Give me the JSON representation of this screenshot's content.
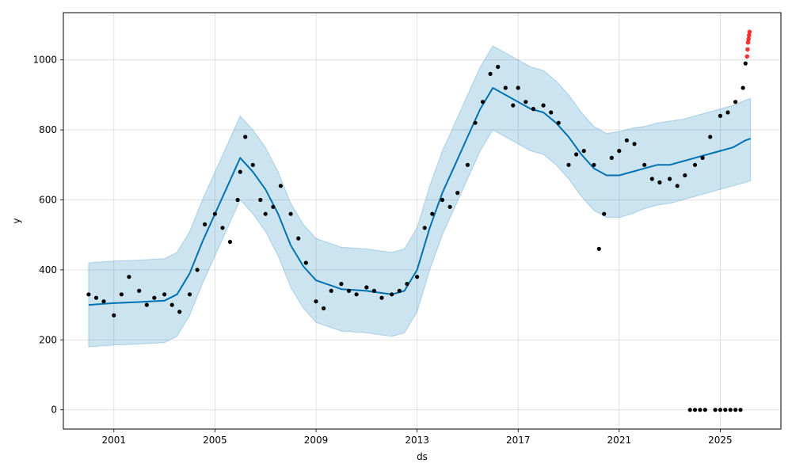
{
  "chart_data": {
    "type": "line",
    "xlabel": "ds",
    "ylabel": "y",
    "xlim": [
      1999.0,
      2027.4
    ],
    "ylim": [
      -55,
      1135
    ],
    "x_ticks": [
      2001,
      2005,
      2009,
      2013,
      2017,
      2021,
      2025
    ],
    "x_tick_labels": [
      "2001",
      "2005",
      "2009",
      "2013",
      "2017",
      "2021",
      "2025"
    ],
    "y_ticks": [
      0,
      200,
      400,
      600,
      800,
      1000
    ],
    "y_tick_labels": [
      "0",
      "200",
      "400",
      "600",
      "800",
      "1000"
    ],
    "grid": true,
    "forecast": {
      "x": [
        2000.0,
        2001.0,
        2002.0,
        2003.0,
        2003.5,
        2004.0,
        2004.5,
        2005.0,
        2005.5,
        2006.0,
        2006.5,
        2007.0,
        2007.5,
        2008.0,
        2008.5,
        2009.0,
        2010.0,
        2011.0,
        2011.5,
        2012.0,
        2012.5,
        2013.0,
        2013.5,
        2014.0,
        2014.5,
        2015.0,
        2015.5,
        2016.0,
        2016.5,
        2017.0,
        2017.5,
        2018.0,
        2018.5,
        2019.0,
        2019.5,
        2020.0,
        2020.5,
        2021.0,
        2021.5,
        2022.0,
        2022.5,
        2023.0,
        2023.5,
        2024.0,
        2024.5,
        2025.0,
        2025.5,
        2026.0,
        2026.2
      ],
      "y": [
        300,
        305,
        308,
        312,
        330,
        390,
        480,
        560,
        640,
        720,
        680,
        630,
        560,
        470,
        410,
        370,
        345,
        340,
        335,
        330,
        340,
        400,
        520,
        620,
        700,
        780,
        860,
        920,
        900,
        880,
        860,
        850,
        820,
        780,
        730,
        690,
        670,
        670,
        680,
        690,
        700,
        700,
        710,
        720,
        730,
        740,
        750,
        770,
        775
      ],
      "lower": [
        180,
        185,
        188,
        192,
        210,
        270,
        360,
        440,
        520,
        600,
        560,
        510,
        440,
        350,
        290,
        250,
        225,
        220,
        215,
        210,
        220,
        280,
        400,
        500,
        580,
        660,
        740,
        800,
        780,
        760,
        740,
        730,
        700,
        660,
        610,
        570,
        550,
        550,
        560,
        575,
        585,
        590,
        600,
        610,
        620,
        630,
        640,
        650,
        655
      ],
      "upper": [
        420,
        425,
        428,
        432,
        450,
        510,
        600,
        680,
        760,
        840,
        800,
        750,
        680,
        590,
        530,
        490,
        465,
        460,
        455,
        450,
        460,
        520,
        640,
        740,
        820,
        900,
        980,
        1040,
        1020,
        1000,
        980,
        970,
        940,
        900,
        850,
        810,
        790,
        795,
        805,
        810,
        820,
        825,
        830,
        840,
        850,
        860,
        870,
        885,
        890
      ]
    },
    "observed": {
      "x": [
        2000.0,
        2000.3,
        2000.6,
        2001.0,
        2001.3,
        2001.6,
        2002.0,
        2002.3,
        2002.6,
        2003.0,
        2003.3,
        2003.6,
        2004.0,
        2004.3,
        2004.6,
        2005.0,
        2005.3,
        2005.6,
        2005.9,
        2006.0,
        2006.2,
        2006.5,
        2006.8,
        2007.0,
        2007.3,
        2007.6,
        2008.0,
        2008.3,
        2008.6,
        2009.0,
        2009.3,
        2009.6,
        2010.0,
        2010.3,
        2010.6,
        2011.0,
        2011.3,
        2011.6,
        2012.0,
        2012.3,
        2012.6,
        2013.0,
        2013.3,
        2013.6,
        2014.0,
        2014.3,
        2014.6,
        2015.0,
        2015.3,
        2015.6,
        2015.9,
        2016.2,
        2016.5,
        2016.8,
        2017.0,
        2017.3,
        2017.6,
        2018.0,
        2018.3,
        2018.6,
        2019.0,
        2019.3,
        2019.6,
        2020.0,
        2020.2,
        2020.4,
        2020.7,
        2021.0,
        2021.3,
        2021.6,
        2022.0,
        2022.3,
        2022.6,
        2023.0,
        2023.3,
        2023.6,
        2024.0,
        2024.3,
        2024.6,
        2025.0,
        2025.3,
        2025.6,
        2025.9,
        2026.0
      ],
      "y": [
        330,
        320,
        310,
        270,
        330,
        380,
        340,
        300,
        320,
        330,
        300,
        280,
        330,
        400,
        530,
        560,
        520,
        480,
        600,
        680,
        780,
        700,
        600,
        560,
        580,
        640,
        560,
        490,
        420,
        310,
        290,
        340,
        360,
        340,
        330,
        350,
        340,
        320,
        330,
        340,
        360,
        380,
        520,
        560,
        600,
        580,
        620,
        700,
        820,
        880,
        960,
        980,
        920,
        870,
        920,
        880,
        860,
        870,
        850,
        820,
        700,
        730,
        740,
        700,
        460,
        560,
        720,
        740,
        770,
        760,
        700,
        660,
        650,
        660,
        640,
        670,
        700,
        720,
        780,
        840,
        850,
        880,
        920,
        990
      ]
    },
    "outliers": {
      "x": [
        2026.06,
        2026.08,
        2026.1,
        2026.12,
        2026.14,
        2026.16
      ],
      "y": [
        1010,
        1030,
        1050,
        1060,
        1070,
        1080
      ]
    },
    "zero_points": {
      "x": [
        2023.8,
        2024.0,
        2024.2,
        2024.4,
        2024.8,
        2025.0,
        2025.2,
        2025.4,
        2025.6,
        2025.8
      ],
      "y": [
        0,
        0,
        0,
        0,
        0,
        0,
        0,
        0,
        0,
        0
      ]
    },
    "colors": {
      "forecast_line": "#0072B2",
      "interval_fill": "#0072B2",
      "observed": "#000000",
      "outliers": "#ff0000"
    }
  }
}
